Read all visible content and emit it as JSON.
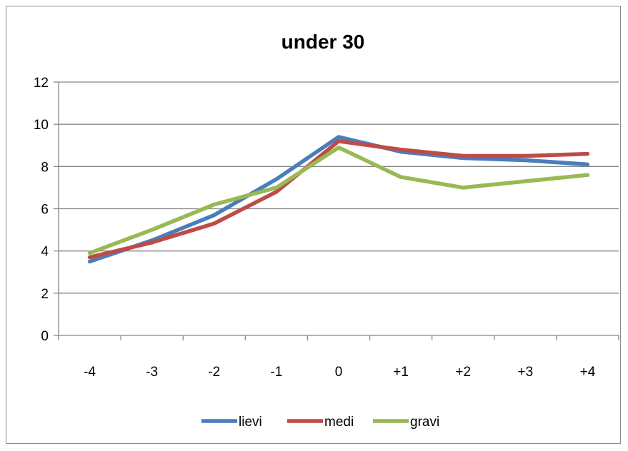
{
  "chart_data": {
    "type": "line",
    "title": "under 30",
    "xlabel": "",
    "ylabel": "",
    "categories": [
      "-4",
      "-3",
      "-2",
      "-1",
      "0",
      "+1",
      "+2",
      "+3",
      "+4"
    ],
    "ylim": [
      0,
      12
    ],
    "yticks": [
      "0",
      "2",
      "4",
      "6",
      "8",
      "10",
      "12"
    ],
    "grid": true,
    "legend": "bottom",
    "series": [
      {
        "name": "lievi",
        "color": "#4a7ebb",
        "values": [
          3.5,
          4.5,
          5.7,
          7.4,
          9.4,
          8.7,
          8.4,
          8.3,
          8.1
        ]
      },
      {
        "name": "medi",
        "color": "#be4b48",
        "values": [
          3.7,
          4.4,
          5.3,
          6.8,
          9.2,
          8.8,
          8.5,
          8.5,
          8.6
        ]
      },
      {
        "name": "gravi",
        "color": "#98b954",
        "values": [
          3.9,
          5.0,
          6.2,
          7.0,
          8.9,
          7.5,
          7.0,
          7.3,
          7.6
        ]
      }
    ]
  }
}
